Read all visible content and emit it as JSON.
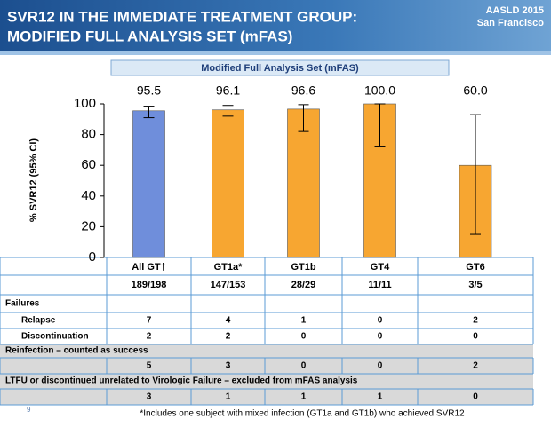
{
  "header": {
    "title_lines": [
      "SVR12 IN THE IMMEDIATE TREATMENT GROUP:",
      "MODIFIED FULL ANALYSIS SET (mFAS)"
    ],
    "meeting": "AASLD 2015",
    "location": "San Francisco"
  },
  "chart_data": {
    "type": "bar",
    "title": "Modified Full Analysis Set (mFAS)",
    "y_label": "% SVR12 (95% CI)",
    "categories": [
      "All GT†",
      "GT1a*",
      "GT1b",
      "GT4",
      "GT6"
    ],
    "values": [
      95.5,
      96.1,
      96.6,
      100.0,
      60.0
    ],
    "value_labels": [
      "95.5",
      "96.1",
      "96.6",
      "100.0",
      "60.0"
    ],
    "ci_low": [
      91,
      92,
      82,
      72,
      15
    ],
    "ci_high": [
      98.5,
      99,
      99.5,
      100,
      93
    ],
    "colors": [
      "#6f8edb",
      "#f7a631",
      "#f7a631",
      "#f7a631",
      "#f7a631"
    ],
    "ylim": [
      0,
      100
    ],
    "yticks": [
      0,
      20,
      40,
      60,
      80,
      100
    ]
  },
  "table": {
    "counts": [
      "189/198",
      "147/153",
      "28/29",
      "11/11",
      "3/5"
    ],
    "failures": {
      "title": "Failures",
      "rows": [
        {
          "label": "Relapse",
          "cells": [
            "7",
            "4",
            "1",
            "0",
            "2"
          ]
        },
        {
          "label": "Discontinuation",
          "cells": [
            "2",
            "2",
            "0",
            "0",
            "0"
          ]
        }
      ]
    },
    "reinfection": {
      "title": "Reinfection – counted as success",
      "cells": [
        "5",
        "3",
        "0",
        "0",
        "2"
      ]
    },
    "ltfu": {
      "title": "LTFU or discontinued unrelated to Virologic Failure – excluded from mFAS analysis",
      "cells": [
        "3",
        "1",
        "1",
        "1",
        "0"
      ]
    }
  },
  "footnote": "*Includes one subject with mixed infection (GT1a and GT1b) who achieved SVR12",
  "page_number": "9"
}
